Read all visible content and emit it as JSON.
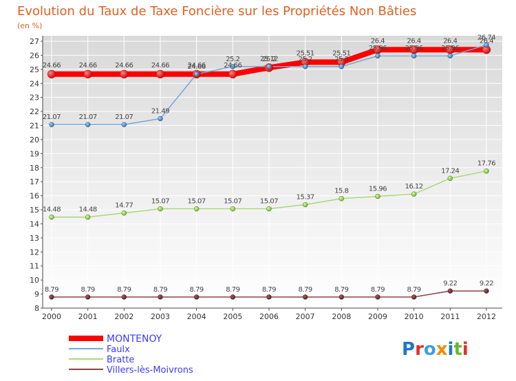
{
  "chart_data": {
    "type": "line",
    "title": "Evolution du Taux de Taxe Foncière sur les Propriétés Non Bâties",
    "subtitle": "(en %)",
    "xlabel": "",
    "ylabel": "",
    "ylim": [
      8,
      27
    ],
    "yticks": [
      8,
      9,
      10,
      11,
      12,
      13,
      14,
      15,
      16,
      17,
      18,
      19,
      20,
      21,
      22,
      23,
      24,
      25,
      26,
      27
    ],
    "grid": true,
    "legend_position": "bottom-left",
    "x": [
      "2000",
      "2001",
      "2002",
      "2003",
      "2004",
      "2005",
      "2006",
      "2007",
      "2008",
      "2009",
      "2010",
      "2011",
      "2012"
    ],
    "series": [
      {
        "name": "MONTENOY",
        "color": "#ff0000",
        "values": [
          24.66,
          24.66,
          24.66,
          24.66,
          24.66,
          24.66,
          25.12,
          25.51,
          25.51,
          26.4,
          26.4,
          26.4,
          26.4
        ],
        "labels": [
          "24.66",
          "24.66",
          "24.66",
          "24.66",
          "24.66",
          "24.66",
          "25.12",
          "25.51",
          "25.51",
          "26.4",
          "26.4",
          "26.4",
          "26.4"
        ]
      },
      {
        "name": "Faulx",
        "color": "#72a8d8",
        "values": [
          21.07,
          21.07,
          21.07,
          21.49,
          24.66,
          25.2,
          25.2,
          25.2,
          25.2,
          25.96,
          25.96,
          25.96,
          26.74
        ],
        "labels": [
          "21.07",
          "21.07",
          "21.07",
          "21.49",
          "24.66",
          "25.2",
          "25.2",
          "25.2",
          "25.2",
          "25.96",
          "25.96",
          "25.96",
          "26.74"
        ]
      },
      {
        "name": "Bratte",
        "color": "#a8d878",
        "values": [
          14.48,
          14.48,
          14.77,
          15.07,
          15.07,
          15.07,
          15.07,
          15.37,
          15.8,
          15.96,
          16.12,
          17.24,
          17.76
        ],
        "labels": [
          "14.48",
          "14.48",
          "14.77",
          "15.07",
          "15.07",
          "15.07",
          "15.07",
          "15.37",
          "15.8",
          "15.96",
          "16.12",
          "17.24",
          "17.76"
        ]
      },
      {
        "name": "Villers-lès-Moivrons",
        "color": "#904040",
        "values": [
          8.79,
          8.79,
          8.79,
          8.79,
          8.79,
          8.79,
          8.79,
          8.79,
          8.79,
          8.79,
          8.79,
          9.22,
          9.22
        ],
        "labels": [
          "8.79",
          "8.79",
          "8.79",
          "8.79",
          "8.79",
          "8.79",
          "8.79",
          "8.79",
          "8.79",
          "8.79",
          "8.79",
          "9.22",
          "9.22"
        ]
      }
    ]
  },
  "logo": {
    "text": "Proxiti"
  }
}
